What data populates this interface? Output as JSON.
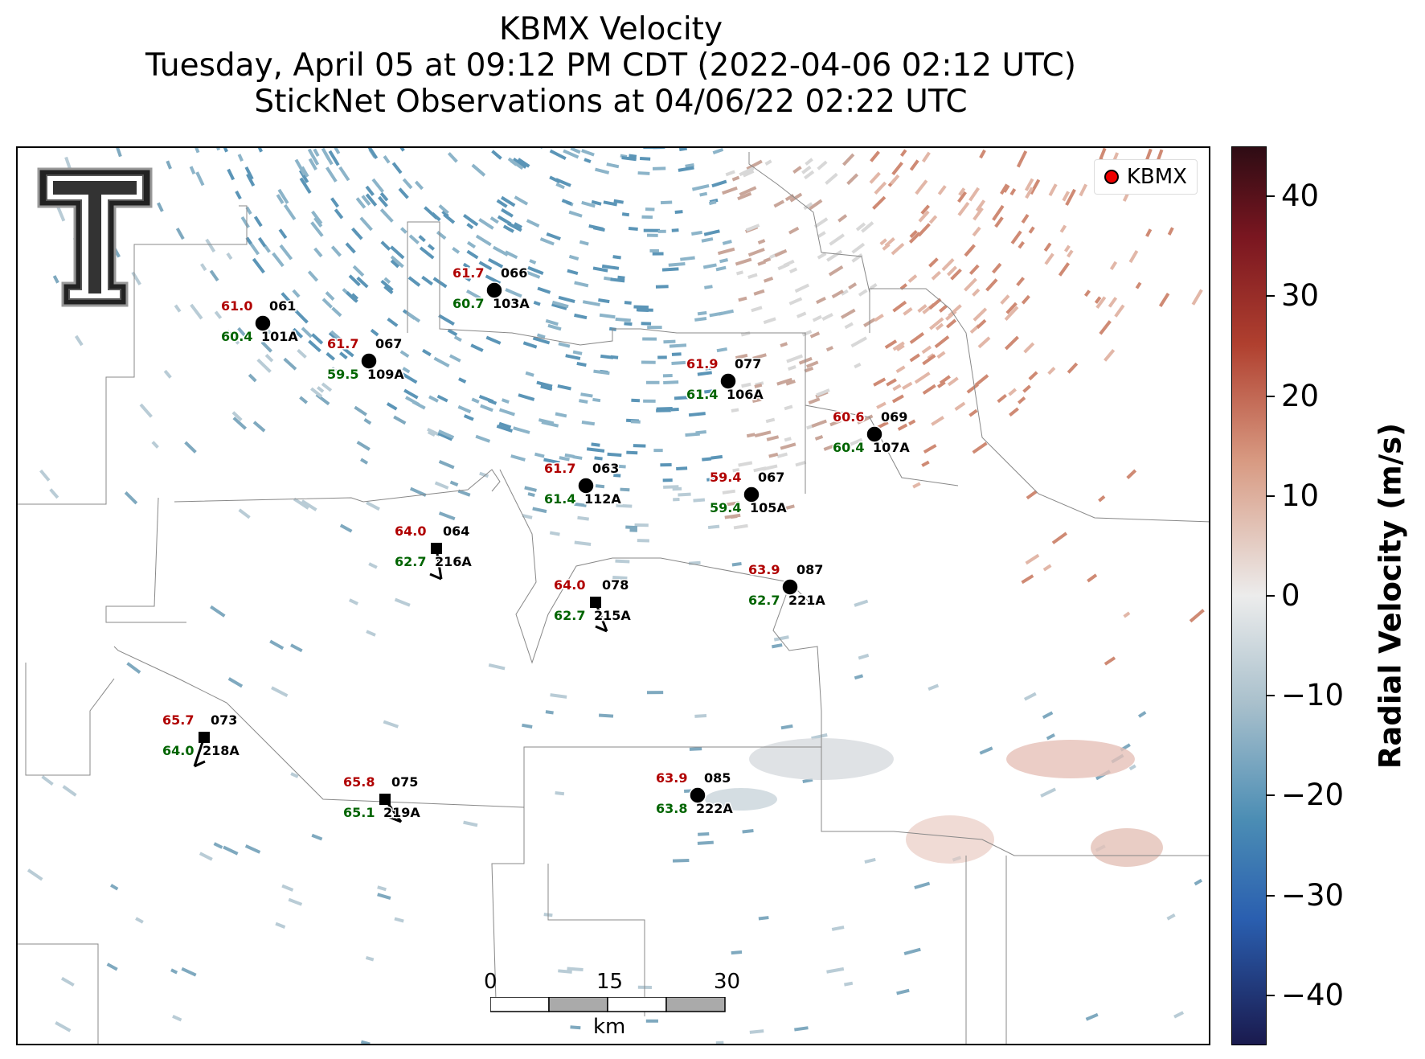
{
  "title": {
    "line1": "KBMX Velocity",
    "line2": "Tuesday, April 05 at 09:12 PM CDT (2022-04-06 02:12 UTC)",
    "line3": "StickNet Observations at 04/06/22 02:22 UTC"
  },
  "legend": {
    "label": "KBMX",
    "marker_color": "#ff0000"
  },
  "colorbar": {
    "title": "Radial Velocity (m/s)",
    "range": [
      -45,
      45
    ],
    "ticks": [
      "40",
      "30",
      "20",
      "10",
      "0",
      "−10",
      "−20",
      "−30",
      "−40"
    ],
    "tick_values": [
      40,
      30,
      20,
      10,
      0,
      -10,
      -20,
      -30,
      -40
    ],
    "colors": {
      "positive": "#b0402f",
      "zero": "#ececec",
      "negative": "#4b8db4"
    }
  },
  "scalebar": {
    "labels": [
      "0",
      "15",
      "30"
    ],
    "unit": "km"
  },
  "stations": [
    {
      "id": "101A",
      "temp": "61.0",
      "dew": "60.4",
      "pressure": "061",
      "marker": "circle"
    },
    {
      "id": "109A",
      "temp": "61.7",
      "dew": "59.5",
      "pressure": "067",
      "marker": "circle"
    },
    {
      "id": "103A",
      "temp": "61.7",
      "dew": "60.7",
      "pressure": "066",
      "marker": "circle"
    },
    {
      "id": "106A",
      "temp": "61.9",
      "dew": "61.4",
      "pressure": "077",
      "marker": "circle"
    },
    {
      "id": "107A",
      "temp": "60.6",
      "dew": "60.4",
      "pressure": "069",
      "marker": "circle"
    },
    {
      "id": "112A",
      "temp": "61.7",
      "dew": "61.4",
      "pressure": "063",
      "marker": "circle"
    },
    {
      "id": "105A",
      "temp": "59.4",
      "dew": "59.4",
      "pressure": "067",
      "marker": "circle"
    },
    {
      "id": "216A",
      "temp": "64.0",
      "dew": "62.7",
      "pressure": "064",
      "marker": "square"
    },
    {
      "id": "215A",
      "temp": "64.0",
      "dew": "62.7",
      "pressure": "078",
      "marker": "square"
    },
    {
      "id": "221A",
      "temp": "63.9",
      "dew": "62.7",
      "pressure": "087",
      "marker": "circle"
    },
    {
      "id": "218A",
      "temp": "65.7",
      "dew": "64.0",
      "pressure": "073",
      "marker": "square"
    },
    {
      "id": "219A",
      "temp": "65.8",
      "dew": "65.1",
      "pressure": "075",
      "marker": "square"
    },
    {
      "id": "222A",
      "temp": "63.9",
      "dew": "63.8",
      "pressure": "085",
      "marker": "circle"
    }
  ],
  "colors": {
    "temp": "#b00000",
    "dew": "#006400",
    "text": "#000000"
  }
}
